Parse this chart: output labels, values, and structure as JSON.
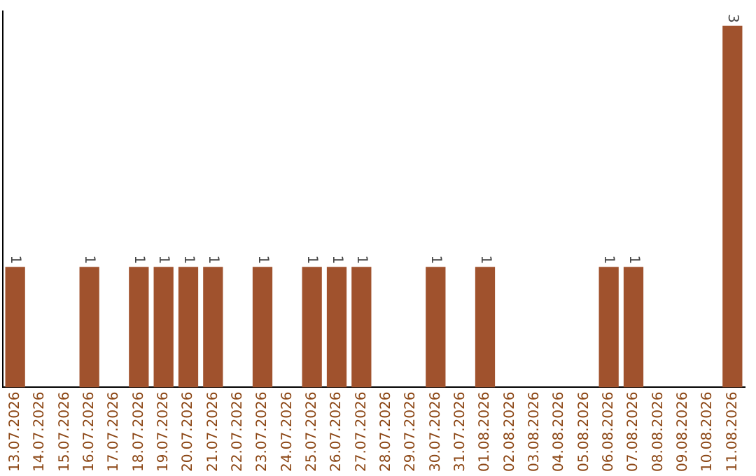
{
  "chart_data": {
    "type": "bar",
    "categories": [
      "13.07.2026",
      "14.07.2026",
      "15.07.2026",
      "16.07.2026",
      "17.07.2026",
      "18.07.2026",
      "19.07.2026",
      "20.07.2026",
      "21.07.2026",
      "22.07.2026",
      "23.07.2026",
      "24.07.2026",
      "25.07.2026",
      "26.07.2026",
      "27.07.2026",
      "28.07.2026",
      "29.07.2026",
      "30.07.2026",
      "31.07.2026",
      "01.08.2026",
      "02.08.2026",
      "03.08.2026",
      "04.08.2026",
      "05.08.2026",
      "06.08.2026",
      "07.08.2026",
      "08.08.2026",
      "09.08.2026",
      "10.08.2026",
      "11.08.2026"
    ],
    "values": [
      1,
      0,
      0,
      1,
      0,
      1,
      1,
      1,
      1,
      0,
      1,
      0,
      1,
      1,
      1,
      0,
      0,
      1,
      0,
      1,
      0,
      0,
      0,
      0,
      1,
      1,
      0,
      0,
      0,
      3
    ],
    "value_labels": [
      "1",
      null,
      null,
      "1",
      null,
      "1",
      "1",
      "1",
      "1",
      null,
      "1",
      null,
      "1",
      "1",
      "1",
      null,
      null,
      "1",
      null,
      "1",
      null,
      null,
      null,
      null,
      "1",
      "1",
      null,
      null,
      null,
      "3"
    ],
    "color": "#a0522d",
    "grid": false,
    "legend": false
  }
}
